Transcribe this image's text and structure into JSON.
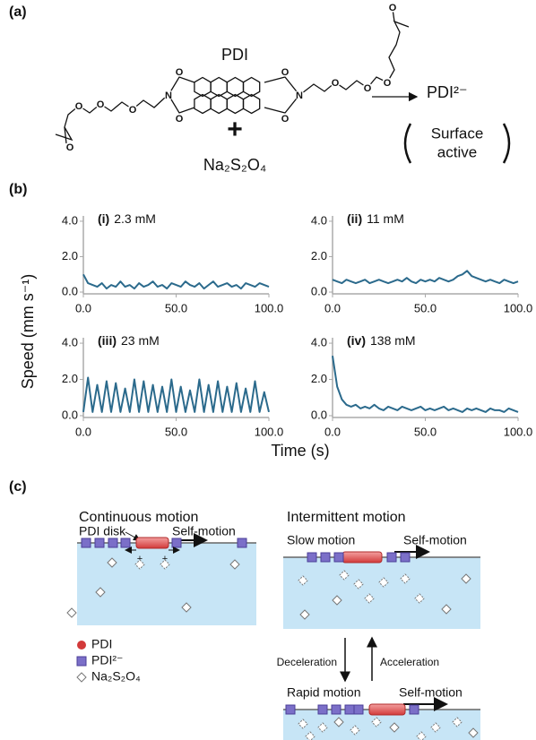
{
  "panels": [
    "(a)",
    "(b)",
    "(c)"
  ],
  "structure": {
    "name": "PDI",
    "atoms": [
      "N",
      "N",
      "O",
      "O",
      "O",
      "O",
      "O",
      "O",
      "O",
      "O",
      "O",
      "O",
      "O",
      "O"
    ],
    "plus": "+",
    "reagent": "Na₂S₂O₄",
    "product": "PDI²⁻",
    "note": [
      "Surface",
      "active"
    ]
  },
  "shared_axes": {
    "y_label": "Speed (mm s⁻¹)",
    "x_label": "Time (s)"
  },
  "chart_data": [
    {
      "type": "line",
      "label": "(i)",
      "title": "2.3 mM",
      "color": "#2b6a8c",
      "xlim": [
        0,
        100
      ],
      "ylim": [
        -0.1,
        4.3
      ],
      "xticks": [
        {
          "value": 0,
          "label": "0.0"
        },
        {
          "value": 50,
          "label": "50.0"
        },
        {
          "value": 100,
          "label": "100.0"
        }
      ],
      "yticks": [
        {
          "value": 0,
          "label": "0.0"
        },
        {
          "value": 2,
          "label": "2.0"
        },
        {
          "value": 4,
          "label": "4.0"
        }
      ],
      "x": [
        0,
        2.5,
        5,
        7.5,
        10,
        12.5,
        15,
        17.5,
        20,
        22.5,
        25,
        27.5,
        30,
        32.5,
        35,
        37.5,
        40,
        42.5,
        45,
        47.5,
        50,
        52.5,
        55,
        57.5,
        60,
        62.5,
        65,
        67.5,
        70,
        72.5,
        75,
        77.5,
        80,
        82.5,
        85,
        87.5,
        90,
        92.5,
        95,
        97.5,
        100
      ],
      "values": [
        1.0,
        0.5,
        0.4,
        0.3,
        0.5,
        0.2,
        0.4,
        0.3,
        0.6,
        0.3,
        0.4,
        0.2,
        0.5,
        0.3,
        0.4,
        0.6,
        0.3,
        0.4,
        0.2,
        0.5,
        0.4,
        0.3,
        0.6,
        0.4,
        0.3,
        0.5,
        0.2,
        0.4,
        0.6,
        0.3,
        0.4,
        0.5,
        0.3,
        0.4,
        0.2,
        0.5,
        0.4,
        0.3,
        0.5,
        0.4,
        0.3
      ]
    },
    {
      "type": "line",
      "label": "(ii)",
      "title": "11 mM",
      "color": "#2b6a8c",
      "xlim": [
        0,
        100
      ],
      "ylim": [
        -0.1,
        4.3
      ],
      "xticks": [
        {
          "value": 0,
          "label": "0.0"
        },
        {
          "value": 50,
          "label": "50.0"
        },
        {
          "value": 100,
          "label": "100.0"
        }
      ],
      "yticks": [
        {
          "value": 0,
          "label": "0.0"
        },
        {
          "value": 2,
          "label": "2.0"
        },
        {
          "value": 4,
          "label": "4.0"
        }
      ],
      "x": [
        0,
        2.5,
        5,
        7.5,
        10,
        12.5,
        15,
        17.5,
        20,
        22.5,
        25,
        27.5,
        30,
        32.5,
        35,
        37.5,
        40,
        42.5,
        45,
        47.5,
        50,
        52.5,
        55,
        57.5,
        60,
        62.5,
        65,
        67.5,
        70,
        72.5,
        75,
        77.5,
        80,
        82.5,
        85,
        87.5,
        90,
        92.5,
        95,
        97.5,
        100
      ],
      "values": [
        0.7,
        0.6,
        0.5,
        0.7,
        0.6,
        0.5,
        0.6,
        0.7,
        0.5,
        0.6,
        0.7,
        0.6,
        0.5,
        0.6,
        0.7,
        0.6,
        0.8,
        0.6,
        0.5,
        0.7,
        0.6,
        0.7,
        0.6,
        0.8,
        0.7,
        0.6,
        0.7,
        0.9,
        1.0,
        1.2,
        0.9,
        0.8,
        0.7,
        0.6,
        0.7,
        0.6,
        0.5,
        0.7,
        0.6,
        0.5,
        0.6
      ]
    },
    {
      "type": "line",
      "label": "(iii)",
      "title": "23 mM",
      "color": "#2b6a8c",
      "xlim": [
        0,
        100
      ],
      "ylim": [
        -0.1,
        4.3
      ],
      "xticks": [
        {
          "value": 0,
          "label": "0.0"
        },
        {
          "value": 50,
          "label": "50.0"
        },
        {
          "value": 100,
          "label": "100.0"
        }
      ],
      "yticks": [
        {
          "value": 0,
          "label": "0.0"
        },
        {
          "value": 2,
          "label": "2.0"
        },
        {
          "value": 4,
          "label": "4.0"
        }
      ],
      "x": [
        0,
        2.5,
        5,
        7.5,
        10,
        12.5,
        15,
        17.5,
        20,
        22.5,
        25,
        27.5,
        30,
        32.5,
        35,
        37.5,
        40,
        42.5,
        45,
        47.5,
        50,
        52.5,
        55,
        57.5,
        60,
        62.5,
        65,
        67.5,
        70,
        72.5,
        75,
        77.5,
        80,
        82.5,
        85,
        87.5,
        90,
        92.5,
        95,
        97.5,
        100
      ],
      "values": [
        0.2,
        2.1,
        0.2,
        1.7,
        0.2,
        1.9,
        0.2,
        1.8,
        0.2,
        1.5,
        0.2,
        2.0,
        0.2,
        1.9,
        0.2,
        1.7,
        0.2,
        1.6,
        0.2,
        2.0,
        0.2,
        1.6,
        0.2,
        1.4,
        0.2,
        2.0,
        0.2,
        1.7,
        0.2,
        1.9,
        0.2,
        1.6,
        0.2,
        1.8,
        0.2,
        1.5,
        0.2,
        1.9,
        0.2,
        1.3,
        0.2
      ]
    },
    {
      "type": "line",
      "label": "(iv)",
      "title": "138 mM",
      "color": "#2b6a8c",
      "xlim": [
        0,
        100
      ],
      "ylim": [
        -0.1,
        4.3
      ],
      "xticks": [
        {
          "value": 0,
          "label": "0.0"
        },
        {
          "value": 50,
          "label": "50.0"
        },
        {
          "value": 100,
          "label": "100.0"
        }
      ],
      "yticks": [
        {
          "value": 0,
          "label": "0.0"
        },
        {
          "value": 2,
          "label": "2.0"
        },
        {
          "value": 4,
          "label": "4.0"
        }
      ],
      "x": [
        0,
        2.5,
        5,
        7.5,
        10,
        12.5,
        15,
        17.5,
        20,
        22.5,
        25,
        27.5,
        30,
        32.5,
        35,
        37.5,
        40,
        42.5,
        45,
        47.5,
        50,
        52.5,
        55,
        57.5,
        60,
        62.5,
        65,
        67.5,
        70,
        72.5,
        75,
        77.5,
        80,
        82.5,
        85,
        87.5,
        90,
        92.5,
        95,
        97.5,
        100
      ],
      "values": [
        3.3,
        1.6,
        0.9,
        0.6,
        0.5,
        0.6,
        0.4,
        0.5,
        0.4,
        0.6,
        0.4,
        0.3,
        0.5,
        0.4,
        0.3,
        0.5,
        0.4,
        0.3,
        0.4,
        0.5,
        0.3,
        0.4,
        0.3,
        0.4,
        0.5,
        0.3,
        0.4,
        0.3,
        0.2,
        0.4,
        0.3,
        0.4,
        0.3,
        0.2,
        0.4,
        0.3,
        0.3,
        0.2,
        0.4,
        0.3,
        0.2
      ]
    }
  ],
  "diagram": {
    "continuous": {
      "title": "Continuous motion",
      "disk": "PDI disk",
      "self": "Self-motion",
      "charges": [
        "+",
        "+"
      ]
    },
    "intermittent": {
      "title": "Intermittent motion",
      "slow": "Slow motion",
      "slow_self": "Self-motion",
      "deceleration": "Deceleration",
      "acceleration": "Acceleration",
      "rapid": "Rapid motion",
      "rapid_self": "Self-motion"
    },
    "legend": [
      "PDI",
      "PDI²⁻",
      "Na₂S₂O₄"
    ]
  }
}
